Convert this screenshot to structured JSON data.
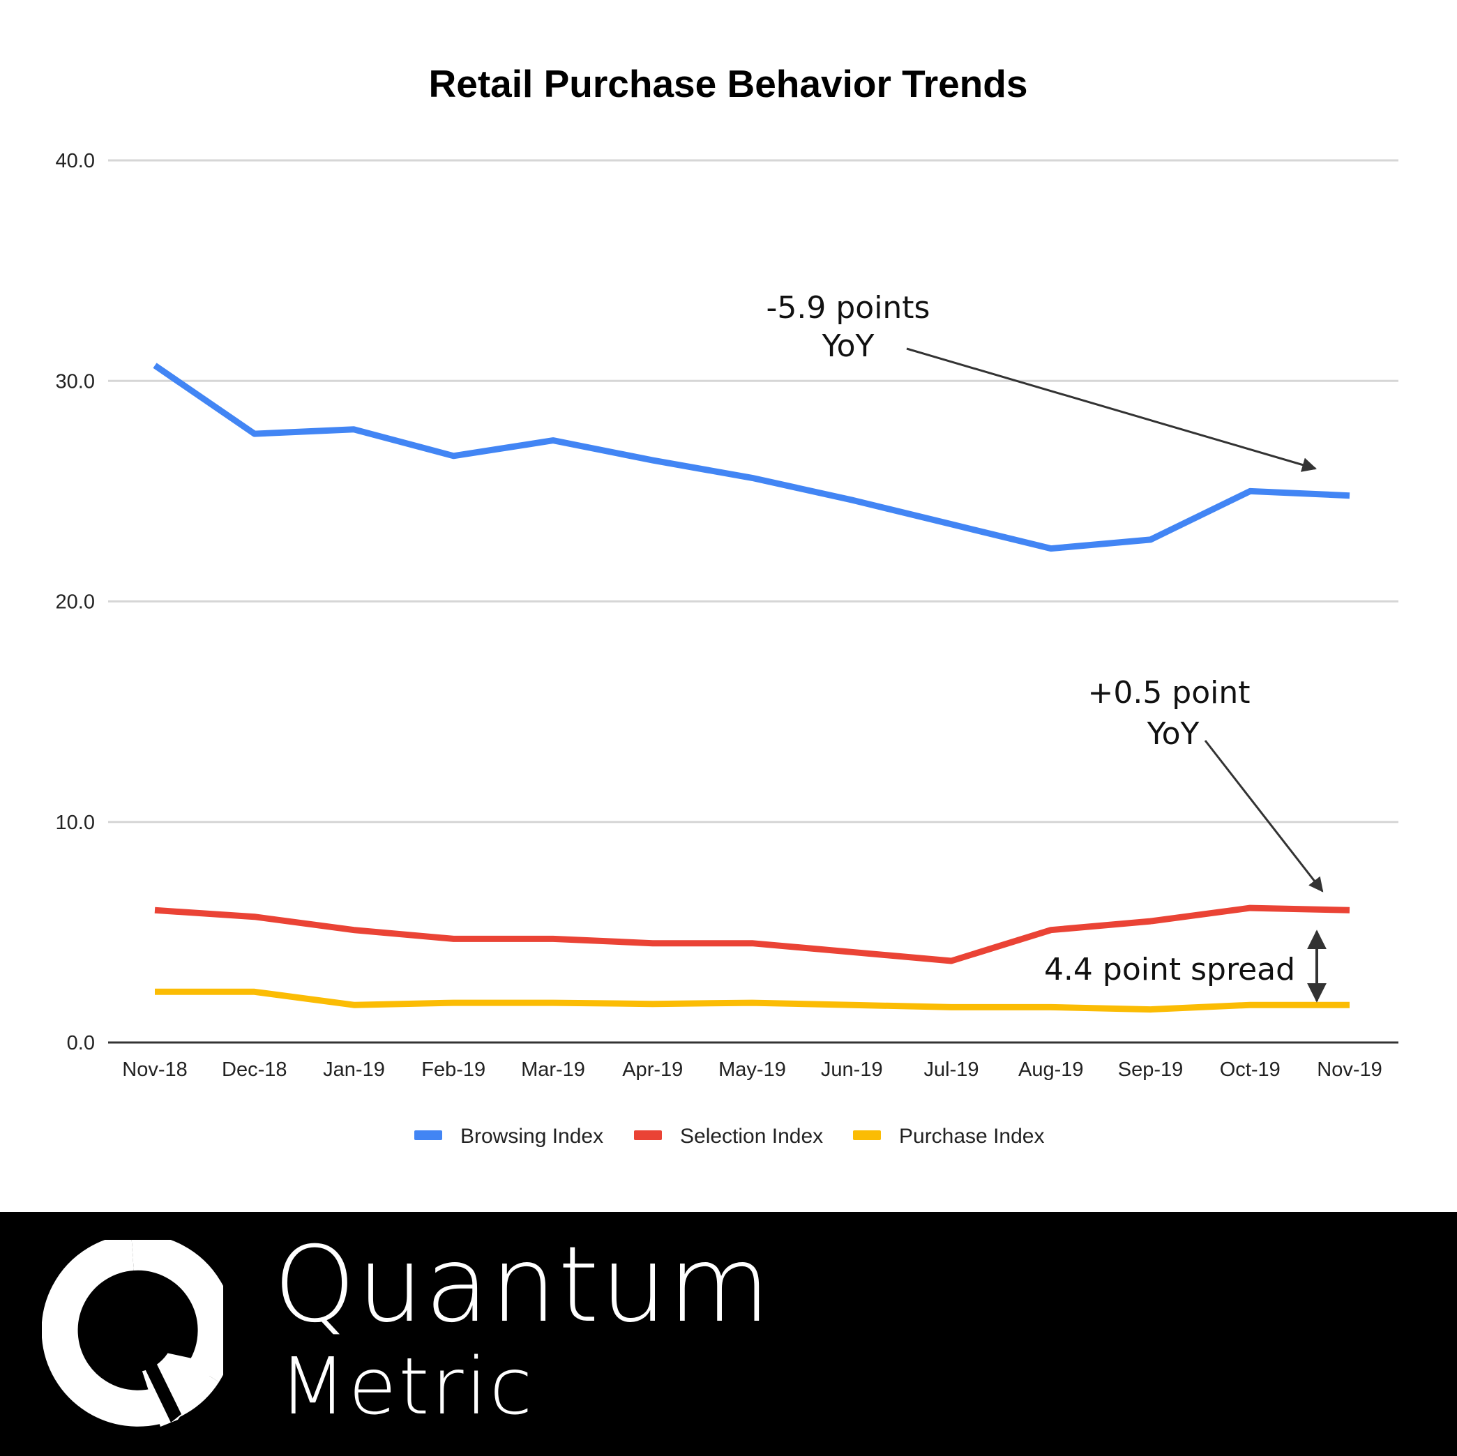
{
  "chart_data": {
    "type": "line",
    "title": "Retail Purchase Behavior Trends",
    "xlabel": "",
    "ylabel": "",
    "categories": [
      "Nov-18",
      "Dec-18",
      "Jan-19",
      "Feb-19",
      "Mar-19",
      "Apr-19",
      "May-19",
      "Jun-19",
      "Jul-19",
      "Aug-19",
      "Sep-19",
      "Oct-19",
      "Nov-19"
    ],
    "ylim": [
      0,
      40
    ],
    "yticks": [
      "0.0",
      "10.0",
      "20.0",
      "30.0",
      "40.0"
    ],
    "grid": true,
    "legend_position": "bottom",
    "series": [
      {
        "name": "Browsing Index",
        "color": "#4285F4",
        "values": [
          30.7,
          27.6,
          27.8,
          26.6,
          27.3,
          26.4,
          25.6,
          24.6,
          23.5,
          22.4,
          22.8,
          25.0,
          24.8
        ]
      },
      {
        "name": "Selection Index",
        "color": "#EA4335",
        "values": [
          6.0,
          5.7,
          5.1,
          4.7,
          4.7,
          4.5,
          4.5,
          4.1,
          3.7,
          5.1,
          5.5,
          6.1,
          6.0
        ]
      },
      {
        "name": "Purchase Index",
        "color": "#FBBC04",
        "values": [
          2.3,
          2.3,
          1.7,
          1.8,
          1.8,
          1.75,
          1.8,
          1.7,
          1.6,
          1.6,
          1.5,
          1.7,
          1.7
        ]
      }
    ],
    "annotations": [
      {
        "line1": "-5.9 points",
        "line2": "YoY"
      },
      {
        "line1": "+0.5 point",
        "line2": "YoY"
      },
      {
        "line1": "4.4 point spread"
      }
    ]
  },
  "footer": {
    "background": "#000000",
    "brand_line1": "Quantum",
    "brand_line2": "Metric",
    "logo_icon": "quantum-metric-q-logo-icon"
  }
}
